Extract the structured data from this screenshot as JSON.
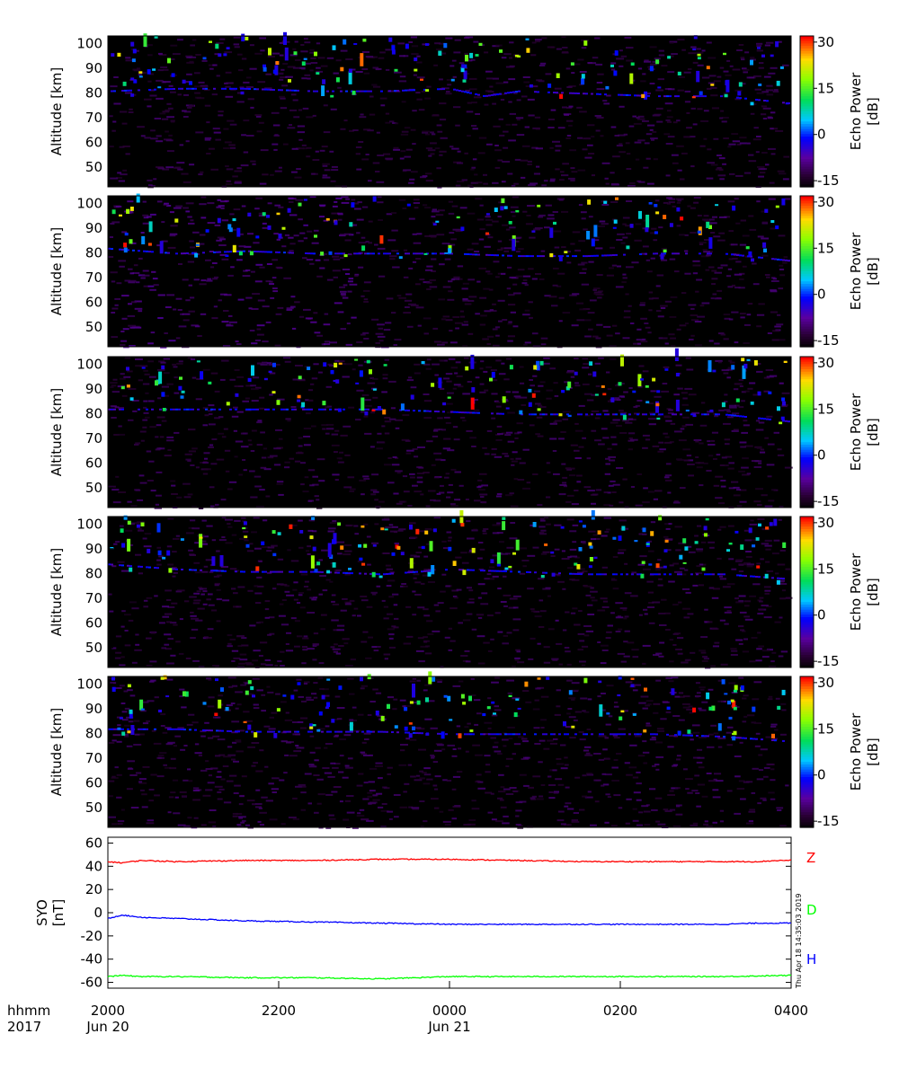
{
  "chart_data": [
    {
      "type": "heatmap",
      "panel": 1,
      "ylabel": "Altitude [km]",
      "yticks": [
        50,
        60,
        70,
        80,
        90,
        100
      ],
      "ylim": [
        42,
        103
      ],
      "colorbar": {
        "label_line1": "Echo Power",
        "label_line2": "[dB]",
        "ticks": [
          -15,
          0,
          15,
          30
        ],
        "range": [
          -17,
          32
        ]
      },
      "echo_layer": [
        [
          0,
          81
        ],
        [
          0.1,
          82
        ],
        [
          0.2,
          82
        ],
        [
          0.3,
          81
        ],
        [
          0.4,
          81
        ],
        [
          0.5,
          82
        ],
        [
          0.55,
          79
        ],
        [
          0.6,
          81
        ],
        [
          0.7,
          80
        ],
        [
          0.8,
          79
        ],
        [
          0.9,
          79
        ],
        [
          1,
          76
        ]
      ],
      "activity": 1.0
    },
    {
      "type": "heatmap",
      "panel": 2,
      "ylabel": "Altitude [km]",
      "yticks": [
        50,
        60,
        70,
        80,
        90,
        100
      ],
      "ylim": [
        42,
        103
      ],
      "colorbar": {
        "label_line1": "Echo Power",
        "label_line2": "[dB]",
        "ticks": [
          -15,
          0,
          15,
          30
        ],
        "range": [
          -17,
          32
        ]
      },
      "echo_layer": [
        [
          0,
          82
        ],
        [
          0.1,
          80
        ],
        [
          0.2,
          81
        ],
        [
          0.3,
          80
        ],
        [
          0.4,
          80
        ],
        [
          0.5,
          80
        ],
        [
          0.6,
          79
        ],
        [
          0.7,
          79
        ],
        [
          0.8,
          80
        ],
        [
          0.9,
          80
        ],
        [
          1,
          77
        ]
      ],
      "activity": 0.9
    },
    {
      "type": "heatmap",
      "panel": 3,
      "ylabel": "Altitude [km]",
      "yticks": [
        50,
        60,
        70,
        80,
        90,
        100
      ],
      "ylim": [
        42,
        103
      ],
      "colorbar": {
        "label_line1": "Echo Power",
        "label_line2": "[dB]",
        "ticks": [
          -15,
          0,
          15,
          30
        ],
        "range": [
          -17,
          32
        ]
      },
      "echo_layer": [
        [
          0,
          82
        ],
        [
          0.1,
          82
        ],
        [
          0.2,
          82
        ],
        [
          0.3,
          82
        ],
        [
          0.4,
          82
        ],
        [
          0.5,
          81
        ],
        [
          0.6,
          80
        ],
        [
          0.7,
          80
        ],
        [
          0.8,
          80
        ],
        [
          0.9,
          80
        ],
        [
          1,
          77
        ]
      ],
      "activity": 1.0
    },
    {
      "type": "heatmap",
      "panel": 4,
      "ylabel": "Altitude [km]",
      "yticks": [
        50,
        60,
        70,
        80,
        90,
        100
      ],
      "ylim": [
        42,
        103
      ],
      "colorbar": {
        "label_line1": "Echo Power",
        "label_line2": "[dB]",
        "ticks": [
          -15,
          0,
          15,
          30
        ],
        "range": [
          -17,
          32
        ]
      },
      "echo_layer": [
        [
          0,
          84
        ],
        [
          0.1,
          82
        ],
        [
          0.2,
          81
        ],
        [
          0.3,
          81
        ],
        [
          0.4,
          80
        ],
        [
          0.5,
          82
        ],
        [
          0.6,
          81
        ],
        [
          0.7,
          80
        ],
        [
          0.8,
          80
        ],
        [
          0.9,
          80
        ],
        [
          1,
          78
        ]
      ],
      "activity": 1.1
    },
    {
      "type": "heatmap",
      "panel": 5,
      "ylabel": "Altitude [km]",
      "yticks": [
        50,
        60,
        70,
        80,
        90,
        100
      ],
      "ylim": [
        42,
        103
      ],
      "colorbar": {
        "label_line1": "Echo Power",
        "label_line2": "[dB]",
        "ticks": [
          -15,
          0,
          15,
          30
        ],
        "range": [
          -17,
          32
        ]
      },
      "echo_layer": [
        [
          0,
          82
        ],
        [
          0.1,
          82
        ],
        [
          0.2,
          81
        ],
        [
          0.3,
          81
        ],
        [
          0.4,
          81
        ],
        [
          0.5,
          80
        ],
        [
          0.6,
          80
        ],
        [
          0.7,
          80
        ],
        [
          0.8,
          80
        ],
        [
          0.9,
          79
        ],
        [
          1,
          77
        ]
      ],
      "activity": 1.0
    },
    {
      "type": "line",
      "panel": 6,
      "ylabel_line1": "SYO",
      "ylabel_line2": "[nT]",
      "yticks": [
        -60,
        -40,
        -20,
        0,
        20,
        40,
        60
      ],
      "ylim": [
        -65,
        65
      ],
      "series": [
        {
          "name": "Z",
          "color": "#ff0000",
          "x": [
            0,
            0.02,
            0.05,
            0.1,
            0.2,
            0.3,
            0.4,
            0.5,
            0.6,
            0.7,
            0.8,
            0.9,
            0.95,
            0.98,
            1
          ],
          "values": [
            44,
            43,
            45,
            44,
            45,
            45,
            46,
            46,
            45,
            44,
            44,
            44,
            44,
            45,
            45
          ]
        },
        {
          "name": "D",
          "color": "#00ff00",
          "x": [
            0,
            0.02,
            0.05,
            0.1,
            0.2,
            0.3,
            0.4,
            0.5,
            0.6,
            0.7,
            0.8,
            0.9,
            1
          ],
          "values": [
            -55,
            -54,
            -55,
            -55,
            -56,
            -56,
            -57,
            -55,
            -55,
            -55,
            -55,
            -55,
            -54
          ]
        },
        {
          "name": "H",
          "color": "#0000ff",
          "x": [
            0,
            0.02,
            0.05,
            0.1,
            0.2,
            0.3,
            0.4,
            0.5,
            0.6,
            0.7,
            0.8,
            0.9,
            0.95,
            1
          ],
          "values": [
            -5,
            -2,
            -4,
            -5,
            -7,
            -8,
            -9,
            -10,
            -10,
            -10,
            -10,
            -10,
            -9,
            -9
          ]
        }
      ]
    }
  ],
  "time_axis": {
    "row_label_line1": "hhmm",
    "row_label_line2": "2017",
    "ticks": [
      {
        "label": "2000",
        "date": "Jun 20",
        "frac": 0.0
      },
      {
        "label": "2200",
        "date": "",
        "frac": 0.25
      },
      {
        "label": "0000",
        "date": "Jun 21",
        "frac": 0.5
      },
      {
        "label": "0200",
        "date": "",
        "frac": 0.75
      },
      {
        "label": "0400",
        "date": "",
        "frac": 1.0
      }
    ]
  },
  "stamp": "Thu Apr 18 14:35:03 2019",
  "colors": {
    "background": "#000000",
    "frame": "#000000"
  }
}
